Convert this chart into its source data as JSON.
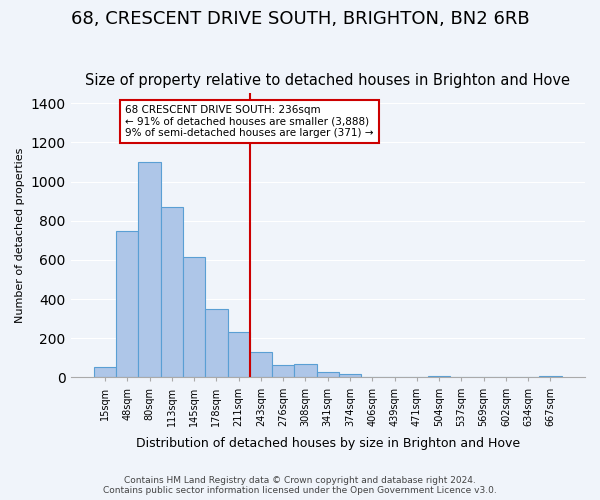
{
  "title": "68, CRESCENT DRIVE SOUTH, BRIGHTON, BN2 6RB",
  "subtitle": "Size of property relative to detached houses in Brighton and Hove",
  "xlabel": "Distribution of detached houses by size in Brighton and Hove",
  "ylabel": "Number of detached properties",
  "footnote1": "Contains HM Land Registry data © Crown copyright and database right 2024.",
  "footnote2": "Contains public sector information licensed under the Open Government Licence v3.0.",
  "bar_labels": [
    "15sqm",
    "48sqm",
    "80sqm",
    "113sqm",
    "145sqm",
    "178sqm",
    "211sqm",
    "243sqm",
    "276sqm",
    "308sqm",
    "341sqm",
    "374sqm",
    "406sqm",
    "439sqm",
    "471sqm",
    "504sqm",
    "537sqm",
    "569sqm",
    "602sqm",
    "634sqm",
    "667sqm"
  ],
  "bar_values": [
    55,
    750,
    1100,
    870,
    615,
    350,
    230,
    130,
    65,
    70,
    30,
    20,
    0,
    0,
    0,
    10,
    0,
    0,
    0,
    0,
    10
  ],
  "bar_color": "#aec6e8",
  "bar_edge_color": "#5a9fd4",
  "property_line_label": "68 CRESCENT DRIVE SOUTH: 236sqm",
  "annotation_line1": "← 91% of detached houses are smaller (3,888)",
  "annotation_line2": "9% of semi-detached houses are larger (371) →",
  "annotation_box_color": "#ffffff",
  "annotation_box_edgecolor": "#cc0000",
  "vline_color": "#cc0000",
  "ylim": [
    0,
    1450
  ],
  "yticks": [
    0,
    200,
    400,
    600,
    800,
    1000,
    1200,
    1400
  ],
  "background_color": "#f0f4fa",
  "title_fontsize": 13,
  "subtitle_fontsize": 10.5
}
